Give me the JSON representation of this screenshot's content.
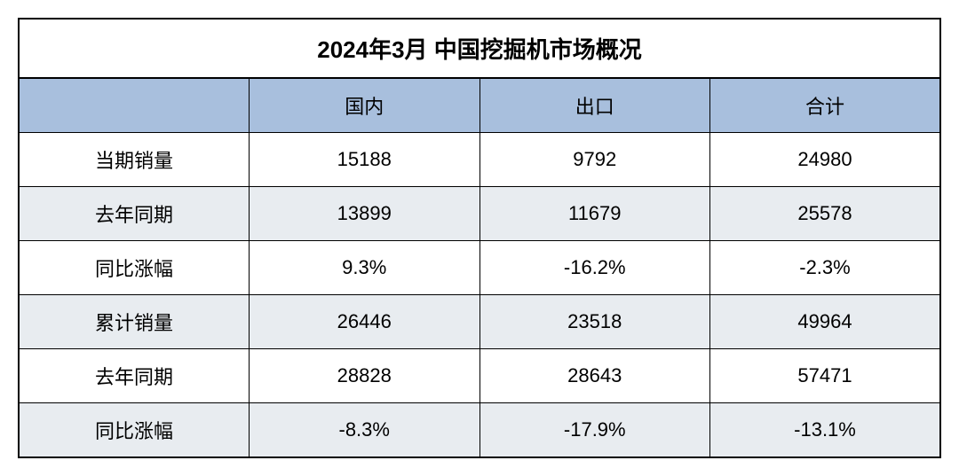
{
  "table": {
    "title": "2024年3月 中国挖掘机市场概况",
    "title_fontsize": 26,
    "header_bg": "#a8bfdd",
    "alt_row_bg": "#e8ecf0",
    "plain_row_bg": "#ffffff",
    "border_color": "#000000",
    "text_color": "#000000",
    "cell_fontsize": 22,
    "header_fontsize": 22,
    "columns": [
      "",
      "国内",
      "出口",
      "合计"
    ],
    "rows": [
      {
        "label": "当期销量",
        "values": [
          "15188",
          "9792",
          "24980"
        ],
        "shaded": false
      },
      {
        "label": "去年同期",
        "values": [
          "13899",
          "11679",
          "25578"
        ],
        "shaded": true
      },
      {
        "label": "同比涨幅",
        "values": [
          "9.3%",
          "-16.2%",
          "-2.3%"
        ],
        "shaded": false
      },
      {
        "label": "累计销量",
        "values": [
          "26446",
          "23518",
          "49964"
        ],
        "shaded": true
      },
      {
        "label": "去年同期",
        "values": [
          "28828",
          "28643",
          "57471"
        ],
        "shaded": false
      },
      {
        "label": "同比涨幅",
        "values": [
          "-8.3%",
          "-17.9%",
          "-13.1%"
        ],
        "shaded": true
      }
    ]
  }
}
